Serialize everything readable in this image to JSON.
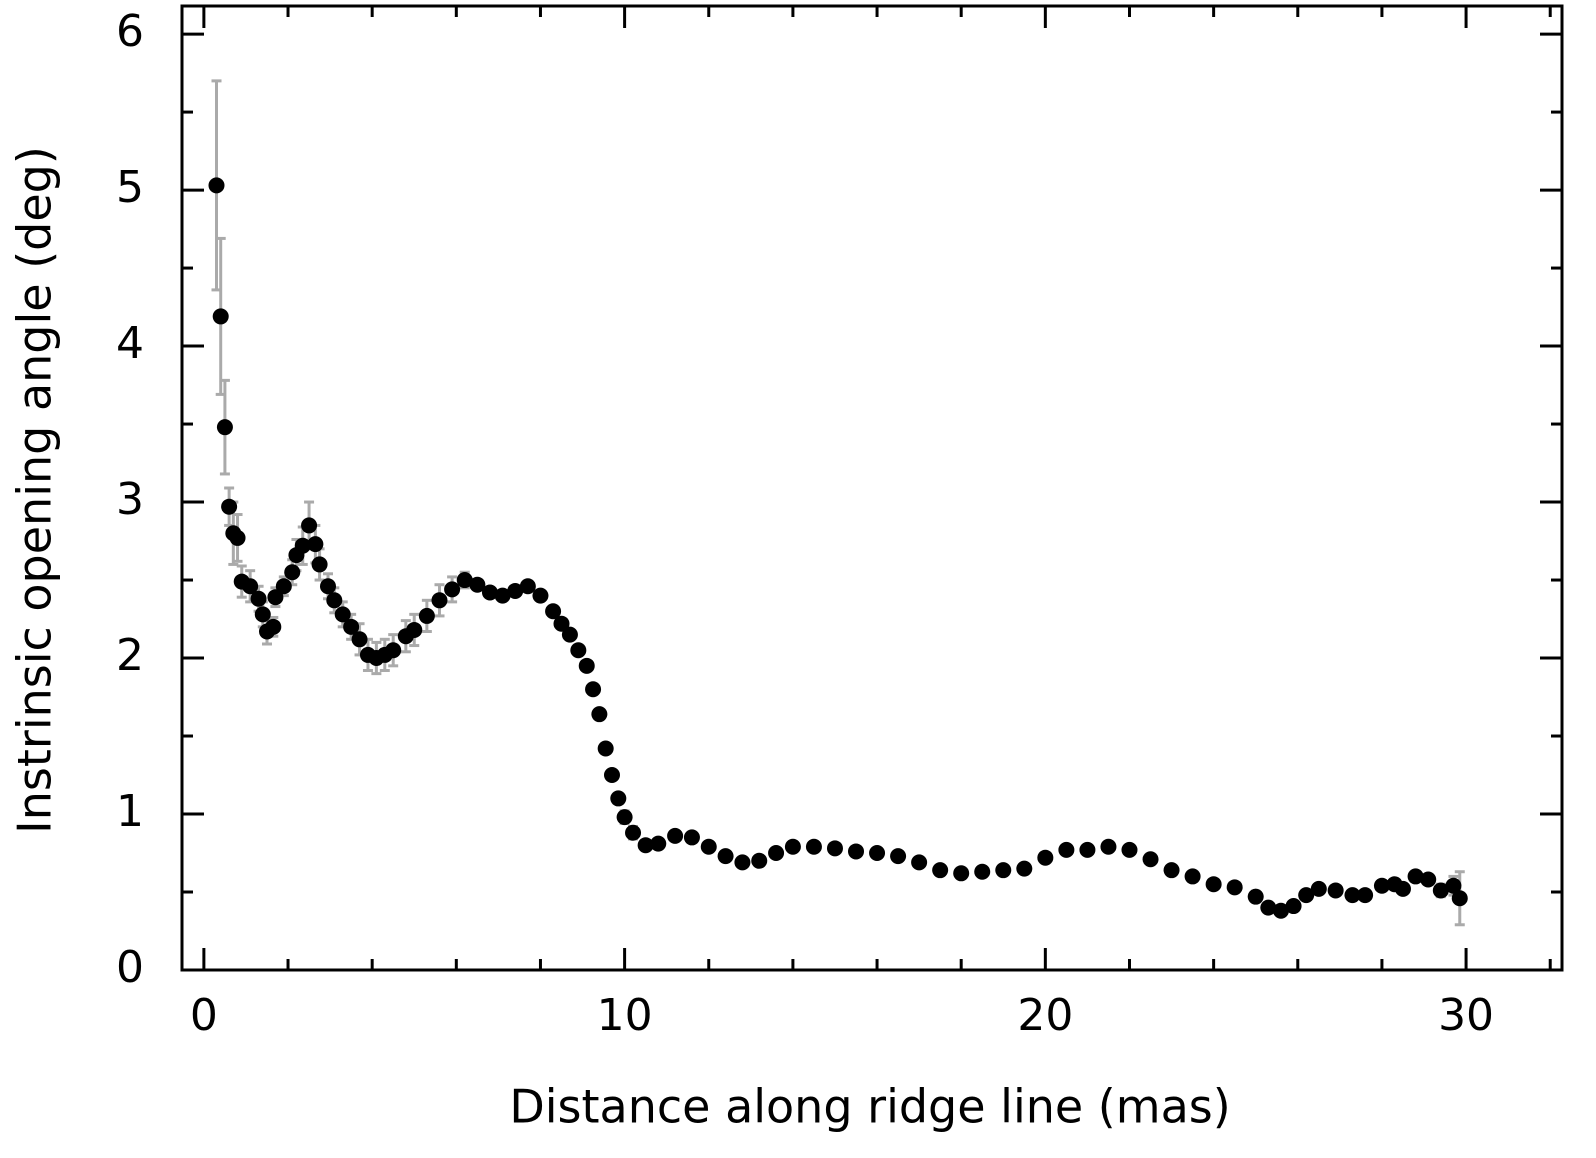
{
  "chart_data": {
    "type": "scatter",
    "x_label": "Distance along ridge line (mas)",
    "y_label": "Instrinsic opening angle (deg)",
    "xlim": [
      -0.52,
      32.28
    ],
    "ylim": [
      0,
      6.18
    ],
    "xticks": [
      0,
      10,
      20,
      30
    ],
    "yticks": [
      0,
      1,
      2,
      3,
      4,
      5,
      6
    ],
    "x_minor_ticks": [
      2,
      4,
      6,
      8,
      12,
      14,
      16,
      18,
      22,
      24,
      26,
      28,
      32
    ],
    "y_minor_ticks": [
      0.5,
      1.5,
      2.5,
      3.5,
      4.5,
      5.5
    ],
    "series": [
      {
        "color": "#000000",
        "error_color": "#aaaaaa",
        "x": [
          0.3,
          0.4,
          0.5,
          0.6,
          0.7,
          0.8,
          0.9,
          1.1,
          1.3,
          1.4,
          1.5,
          1.65,
          1.7,
          1.9,
          2.1,
          2.2,
          2.35,
          2.5,
          2.65,
          2.75,
          2.95,
          3.1,
          3.3,
          3.5,
          3.7,
          3.9,
          4.1,
          4.3,
          4.5,
          4.8,
          5.0,
          5.3,
          5.6,
          5.9,
          6.2,
          6.5,
          6.8,
          7.1,
          7.4,
          7.7,
          8.0,
          8.3,
          8.5,
          8.7,
          8.9,
          9.1,
          9.25,
          9.4,
          9.55,
          9.7,
          9.85,
          10.0,
          10.2,
          10.5,
          10.8,
          11.2,
          11.6,
          12.0,
          12.4,
          12.8,
          13.2,
          13.6,
          14.0,
          14.5,
          15.0,
          15.5,
          16.0,
          16.5,
          17.0,
          17.5,
          18.0,
          18.5,
          19.0,
          19.5,
          20.0,
          20.5,
          21.0,
          21.5,
          22.0,
          22.5,
          23.0,
          23.5,
          24.0,
          24.5,
          25.0,
          25.3,
          25.6,
          25.9,
          26.2,
          26.5,
          26.9,
          27.3,
          27.6,
          28.0,
          28.3,
          28.5,
          28.8,
          29.1,
          29.4,
          29.7,
          29.85
        ],
        "values": [
          5.03,
          4.19,
          3.48,
          2.97,
          2.8,
          2.77,
          2.49,
          2.46,
          2.38,
          2.28,
          2.17,
          2.2,
          2.39,
          2.46,
          2.55,
          2.66,
          2.72,
          2.85,
          2.73,
          2.6,
          2.46,
          2.37,
          2.28,
          2.2,
          2.12,
          2.02,
          2.0,
          2.02,
          2.05,
          2.14,
          2.18,
          2.27,
          2.37,
          2.44,
          2.5,
          2.47,
          2.42,
          2.4,
          2.43,
          2.46,
          2.4,
          2.3,
          2.22,
          2.15,
          2.05,
          1.95,
          1.8,
          1.64,
          1.42,
          1.25,
          1.1,
          0.98,
          0.88,
          0.8,
          0.81,
          0.86,
          0.85,
          0.79,
          0.73,
          0.69,
          0.7,
          0.75,
          0.79,
          0.79,
          0.78,
          0.76,
          0.75,
          0.73,
          0.69,
          0.64,
          0.62,
          0.63,
          0.64,
          0.65,
          0.72,
          0.77,
          0.77,
          0.79,
          0.77,
          0.71,
          0.64,
          0.6,
          0.55,
          0.53,
          0.47,
          0.4,
          0.38,
          0.41,
          0.48,
          0.52,
          0.51,
          0.48,
          0.48,
          0.54,
          0.55,
          0.52,
          0.6,
          0.58,
          0.51,
          0.54,
          0.46
        ],
        "errors": [
          0.67,
          0.5,
          0.3,
          0.12,
          0.2,
          0.15,
          0.1,
          0.1,
          0.08,
          0.08,
          0.08,
          0.06,
          0.06,
          0.06,
          0.08,
          0.1,
          0.12,
          0.15,
          0.12,
          0.1,
          0.08,
          0.08,
          0.08,
          0.08,
          0.1,
          0.1,
          0.1,
          0.1,
          0.1,
          0.1,
          0.1,
          0.1,
          0.1,
          0.08,
          0.05,
          0.03,
          0.03,
          0.03,
          0.03,
          0.03,
          0.03,
          0.03,
          0.03,
          0.03,
          0.03,
          0.03,
          0.03,
          0.03,
          0.03,
          0.03,
          0.03,
          0.04,
          0.04,
          0.03,
          0.03,
          0.02,
          0.02,
          0.02,
          0.02,
          0.02,
          0.02,
          0.02,
          0.02,
          0.02,
          0.02,
          0.02,
          0.02,
          0.02,
          0.02,
          0.02,
          0.02,
          0.02,
          0.02,
          0.02,
          0.02,
          0.02,
          0.02,
          0.02,
          0.02,
          0.02,
          0.02,
          0.02,
          0.02,
          0.02,
          0.02,
          0.02,
          0.02,
          0.02,
          0.02,
          0.02,
          0.02,
          0.02,
          0.02,
          0.03,
          0.03,
          0.03,
          0.03,
          0.03,
          0.04,
          0.06,
          0.17
        ]
      }
    ]
  }
}
